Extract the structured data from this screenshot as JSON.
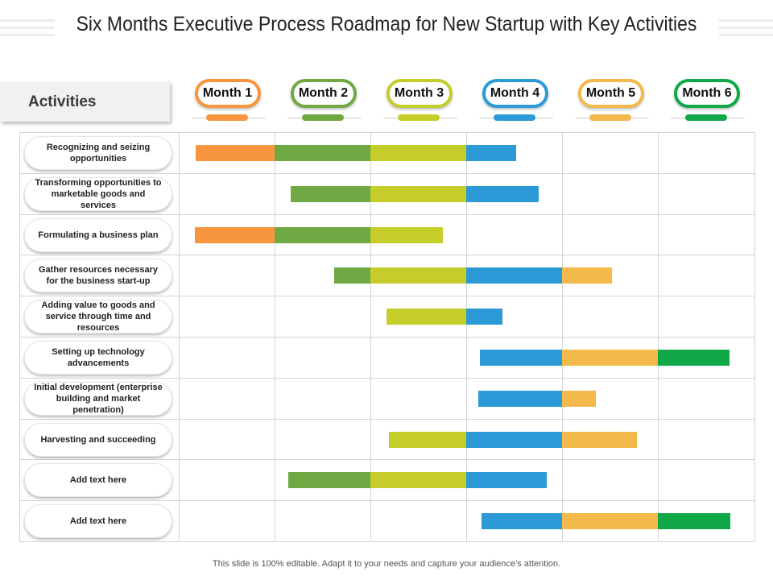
{
  "title": "Six Months Executive Process Roadmap for New Startup with Key Activities",
  "activities_header": "Activities",
  "months": [
    {
      "label": "Month 1",
      "color": "#f7963e"
    },
    {
      "label": "Month 2",
      "color": "#70a844"
    },
    {
      "label": "Month 3",
      "color": "#c5cd2a"
    },
    {
      "label": "Month 4",
      "color": "#2b9ad6"
    },
    {
      "label": "Month 5",
      "color": "#f3b94b"
    },
    {
      "label": "Month 6",
      "color": "#11a84a"
    }
  ],
  "activities": [
    {
      "label": "Recognizing and seizing opportunities",
      "start": 0.18,
      "end": 3.52
    },
    {
      "label": "Transforming opportunities to marketable goods and services",
      "start": 1.17,
      "end": 3.76
    },
    {
      "label": "Formulating a business plan",
      "start": 0.17,
      "end": 2.76
    },
    {
      "label": "Gather resources necessary for the business start-up",
      "start": 1.62,
      "end": 4.52
    },
    {
      "label": "Adding value to goods and service through time and resources",
      "start": 2.17,
      "end": 3.38
    },
    {
      "label": "Setting up technology advancements",
      "start": 3.14,
      "end": 5.74
    },
    {
      "label": "Initial development (enterprise building and market penetration)",
      "start": 3.13,
      "end": 4.35
    },
    {
      "label": "Harvesting and succeeding",
      "start": 2.19,
      "end": 4.78
    },
    {
      "label": "Add text here",
      "start": 1.14,
      "end": 3.84
    },
    {
      "label": "Add text here",
      "start": 3.16,
      "end": 5.75
    }
  ],
  "footer": "This slide is 100% editable. Adapt it to your needs and capture your audience’s attention."
}
